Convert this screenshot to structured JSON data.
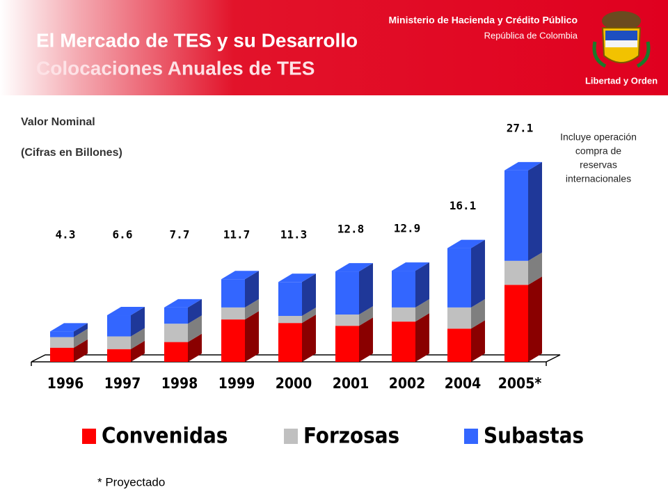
{
  "header": {
    "title": "El Mercado de TES y su Desarrollo",
    "subtitle": "Colocaciones Anuales de TES",
    "ministry": "Ministerio de Hacienda y Crédito Público",
    "country": "República de Colombia",
    "motto": "Libertad y Orden"
  },
  "chart_data": {
    "type": "bar",
    "stacked": true,
    "title": "Valor Nominal",
    "subtitle": "(Cifras en Billones)",
    "annotation": [
      "Incluye operación",
      "compra de",
      "reservas",
      "internacionales"
    ],
    "note": "* Proyectado",
    "categories": [
      "1996",
      "1997",
      "1998",
      "1999",
      "2000",
      "2001",
      "2002",
      "2004",
      "2005*"
    ],
    "series": [
      {
        "name": "Convenidas",
        "color": "#ff0000",
        "side_color": "#8a0000",
        "values": [
          2.0,
          1.8,
          2.8,
          6.0,
          5.5,
          5.1,
          5.7,
          4.7,
          10.9
        ]
      },
      {
        "name": "Forzosas",
        "color": "#c0c0c0",
        "side_color": "#7f7f7f",
        "values": [
          1.5,
          1.8,
          2.6,
          1.7,
          1.0,
          1.6,
          2.0,
          3.0,
          3.4
        ]
      },
      {
        "name": "Subastas",
        "color": "#3366ff",
        "side_color": "#1f3899",
        "values": [
          0.8,
          3.0,
          2.3,
          4.0,
          4.8,
          6.1,
          5.2,
          8.4,
          12.8
        ]
      }
    ],
    "totals": [
      4.3,
      6.6,
      7.7,
      11.7,
      11.3,
      12.8,
      12.9,
      16.1,
      27.1
    ],
    "legend": "bottom"
  }
}
